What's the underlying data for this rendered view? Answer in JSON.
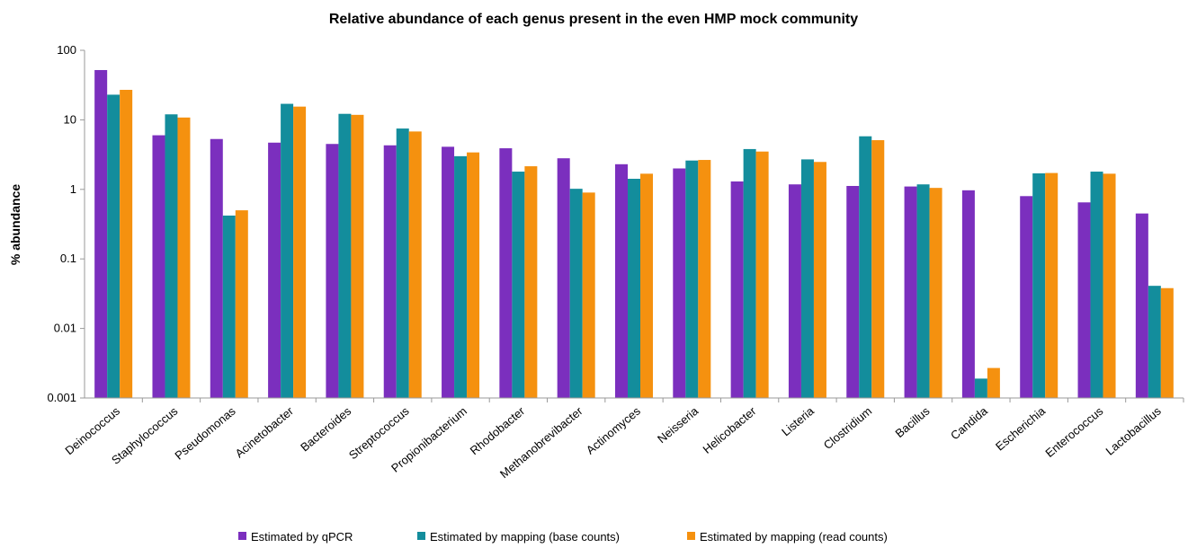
{
  "chart_data": {
    "type": "bar",
    "title": "Relative abundance of each genus present in the even HMP mock community",
    "xlabel": "",
    "ylabel": "% abundance",
    "yscale": "log",
    "ylim": [
      0.001,
      100
    ],
    "yticks": [
      "0.001",
      "0.01",
      "0.1",
      "1",
      "10",
      "100"
    ],
    "grid": false,
    "legend_position": "bottom",
    "categories": [
      "Deinococcus",
      "Staphylococcus",
      "Pseudomonas",
      "Acinetobacter",
      "Bacteroides",
      "Streptococcus",
      "Propionibacterium",
      "Rhodobacter",
      "Methanobrevibacter",
      "Actinomyces",
      "Neisseria",
      "Helicobacter",
      "Listeria",
      "Clostridium",
      "Bacillus",
      "Candida",
      "Escherichia",
      "Enterococcus",
      "Lactobacillus"
    ],
    "series": [
      {
        "name": "Estimated by qPCR",
        "color": "#7b2fbe",
        "values": [
          52,
          6.0,
          5.3,
          4.7,
          4.5,
          4.3,
          4.1,
          3.9,
          2.8,
          2.3,
          2.0,
          1.3,
          1.18,
          1.12,
          1.1,
          0.97,
          0.8,
          0.65,
          0.45
        ]
      },
      {
        "name": "Estimated by mapping (base counts)",
        "color": "#138d9c",
        "values": [
          23,
          12,
          0.42,
          17,
          12.2,
          7.5,
          3.0,
          1.8,
          1.02,
          1.42,
          2.6,
          3.8,
          2.7,
          5.8,
          1.18,
          0.0019,
          1.7,
          1.8,
          0.041
        ]
      },
      {
        "name": "Estimated by mapping (read counts)",
        "color": "#f5910f",
        "values": [
          27,
          10.8,
          0.5,
          15.5,
          11.8,
          6.8,
          3.4,
          2.15,
          0.9,
          1.68,
          2.65,
          3.5,
          2.48,
          5.1,
          1.05,
          0.0027,
          1.72,
          1.68,
          0.038
        ]
      }
    ]
  }
}
